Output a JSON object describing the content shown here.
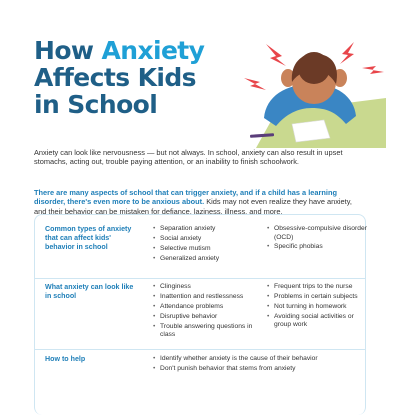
{
  "title": {
    "line1_pre": "How ",
    "line1_accent": "Anxiety",
    "line2": "Affects Kids",
    "line3": "in School"
  },
  "intro": {
    "paragraph1": "Anxiety can look like nervousness — but not always. In school, anxiety can also result in upset stomachs, acting out, trouble paying attention, or an inability to finish schoolwork.",
    "highlight": "There are many aspects of school that can trigger anxiety, and if a child has a learning disorder, there's even more to be anxious about.",
    "paragraph2": "Kids may not even realize they have anxiety, and their behavior can be mistaken for defiance, laziness, illness, and more."
  },
  "table": {
    "rows": [
      {
        "label": "Common types of anxiety that can affect kids' behavior in school",
        "col1": [
          "Separation anxiety",
          "Social anxiety",
          "Selective mutism",
          "Generalized anxiety"
        ],
        "col2": [
          "Obsessive-compulsive disorder (OCD)",
          "Specific phobias"
        ]
      },
      {
        "label": "What anxiety can look like in school",
        "col1": [
          "Clinginess",
          "Inattention and restlessness",
          "Attendance problems",
          "Disruptive behavior",
          "Trouble answering questions in class"
        ],
        "col2": [
          "Frequent trips to the nurse",
          "Problems in certain subjects",
          "Not turning in homework",
          "Avoiding social activities or group work"
        ]
      },
      {
        "label": "How to help",
        "col1": [
          "Identify whether anxiety is the cause of their behavior",
          "Don't punish behavior that stems from anxiety"
        ]
      }
    ]
  },
  "colors": {
    "title_dark": "#1f5f87",
    "title_accent": "#1fa0d6",
    "label_blue": "#1f7fb8",
    "stress_red": "#e8454a",
    "sweater_blue": "#3a86c4",
    "hair_brown": "#6b3a26"
  },
  "icons": [
    "stressed-child-illustration",
    "stress-lines-icon"
  ]
}
